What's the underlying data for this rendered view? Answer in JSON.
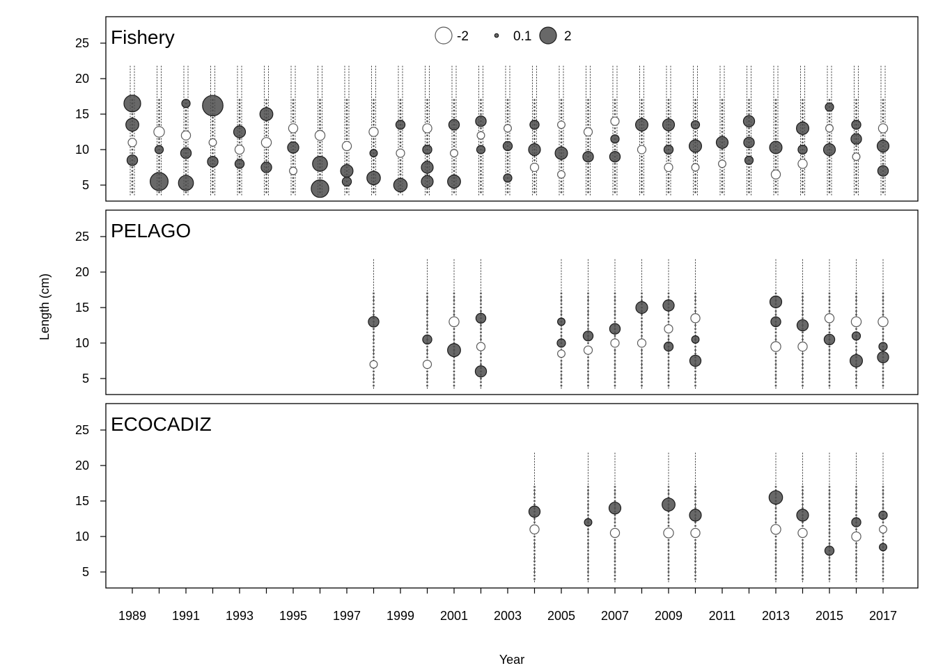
{
  "chart_data": {
    "type": "scatter",
    "subtype": "bubble-residuals",
    "xlabel": "Year",
    "ylabel": "Length (cm)",
    "xlim": [
      1988,
      2018
    ],
    "ylim": [
      3,
      28
    ],
    "x_ticks": [
      1989,
      1991,
      1993,
      1995,
      1997,
      1999,
      2001,
      2003,
      2005,
      2007,
      2009,
      2011,
      2013,
      2015,
      2017
    ],
    "y_ticks": [
      5,
      10,
      15,
      20,
      25
    ],
    "legend": {
      "placement": "top-center",
      "entries": [
        {
          "label": "-2",
          "value": -2
        },
        {
          "label": "0.1",
          "value": 0.1
        },
        {
          "label": "2",
          "value": 2
        }
      ]
    },
    "colors": {
      "positive_fill": "#4d4d4d",
      "negative_fill": "#ffffff",
      "stroke": "#333333"
    },
    "panels": [
      {
        "name": "Fishery",
        "years": [
          1989,
          1990,
          1991,
          1992,
          1993,
          1994,
          1995,
          1996,
          1997,
          1998,
          1999,
          2000,
          2001,
          2002,
          2003,
          2004,
          2005,
          2006,
          2007,
          2008,
          2009,
          2010,
          2011,
          2012,
          2013,
          2014,
          2015,
          2016,
          2017
        ],
        "residuals": [
          [
            1989,
            16.5,
            2.0
          ],
          [
            1989,
            13.5,
            1.2
          ],
          [
            1989,
            8.5,
            0.8
          ],
          [
            1989,
            11,
            -0.5
          ],
          [
            1990,
            5.5,
            2.3
          ],
          [
            1990,
            12.5,
            -0.8
          ],
          [
            1990,
            10,
            0.5
          ],
          [
            1991,
            5.3,
            1.6
          ],
          [
            1991,
            9.5,
            0.8
          ],
          [
            1991,
            12,
            -0.6
          ],
          [
            1991,
            16.5,
            0.5
          ],
          [
            1992,
            16.2,
            3.0
          ],
          [
            1992,
            8.3,
            0.8
          ],
          [
            1992,
            11,
            -0.4
          ],
          [
            1993,
            12.5,
            1.0
          ],
          [
            1993,
            8,
            0.6
          ],
          [
            1993,
            10,
            -0.6
          ],
          [
            1994,
            15,
            1.2
          ],
          [
            1994,
            7.5,
            0.8
          ],
          [
            1994,
            11,
            -0.7
          ],
          [
            1995,
            10.3,
            0.9
          ],
          [
            1995,
            13,
            -0.6
          ],
          [
            1995,
            7,
            -0.4
          ],
          [
            1996,
            4.5,
            2.2
          ],
          [
            1996,
            8,
            1.6
          ],
          [
            1996,
            12,
            -0.7
          ],
          [
            1997,
            7,
            1.1
          ],
          [
            1997,
            5.5,
            0.6
          ],
          [
            1997,
            10.5,
            -0.6
          ],
          [
            1998,
            6,
            1.3
          ],
          [
            1998,
            12.5,
            -0.6
          ],
          [
            1998,
            9.5,
            0.4
          ],
          [
            1999,
            5,
            1.3
          ],
          [
            1999,
            13.5,
            0.6
          ],
          [
            1999,
            9.5,
            -0.5
          ],
          [
            2000,
            5.5,
            1.0
          ],
          [
            2000,
            7.5,
            1.0
          ],
          [
            2000,
            10,
            0.6
          ],
          [
            2000,
            13,
            -0.6
          ],
          [
            2001,
            5.5,
            1.2
          ],
          [
            2001,
            13.5,
            0.8
          ],
          [
            2001,
            9.5,
            -0.4
          ],
          [
            2002,
            14,
            0.8
          ],
          [
            2002,
            10,
            0.5
          ],
          [
            2002,
            12,
            -0.4
          ],
          [
            2003,
            10.5,
            0.6
          ],
          [
            2003,
            6,
            0.5
          ],
          [
            2003,
            13,
            -0.4
          ],
          [
            2004,
            10,
            1.0
          ],
          [
            2004,
            13.5,
            0.6
          ],
          [
            2004,
            7.5,
            -0.5
          ],
          [
            2005,
            9.5,
            1.1
          ],
          [
            2005,
            13.5,
            -0.4
          ],
          [
            2005,
            6.5,
            -0.4
          ],
          [
            2006,
            9,
            0.8
          ],
          [
            2006,
            12.5,
            -0.5
          ],
          [
            2007,
            9,
            0.8
          ],
          [
            2007,
            11.5,
            0.5
          ],
          [
            2007,
            14,
            -0.5
          ],
          [
            2008,
            13.5,
            1.1
          ],
          [
            2008,
            10,
            -0.5
          ],
          [
            2009,
            13.5,
            1.0
          ],
          [
            2009,
            10,
            0.6
          ],
          [
            2009,
            7.5,
            -0.5
          ],
          [
            2010,
            10.5,
            1.1
          ],
          [
            2010,
            13.5,
            0.5
          ],
          [
            2010,
            7.5,
            -0.4
          ],
          [
            2011,
            11,
            1.0
          ],
          [
            2011,
            8,
            -0.4
          ],
          [
            2012,
            14,
            0.9
          ],
          [
            2012,
            11,
            0.8
          ],
          [
            2012,
            8.5,
            0.5
          ],
          [
            2013,
            10.3,
            1.1
          ],
          [
            2013,
            6.5,
            -0.6
          ],
          [
            2014,
            13,
            1.1
          ],
          [
            2014,
            10,
            0.6
          ],
          [
            2014,
            8,
            -0.6
          ],
          [
            2015,
            10,
            1.0
          ],
          [
            2015,
            16,
            0.5
          ],
          [
            2015,
            13,
            -0.4
          ],
          [
            2016,
            11.5,
            0.8
          ],
          [
            2016,
            13.5,
            0.6
          ],
          [
            2016,
            9,
            -0.4
          ],
          [
            2017,
            10.5,
            1.0
          ],
          [
            2017,
            7,
            0.8
          ],
          [
            2017,
            13,
            -0.6
          ]
        ]
      },
      {
        "name": "PELAGO",
        "years": [
          1998,
          2000,
          2001,
          2002,
          2005,
          2006,
          2007,
          2008,
          2009,
          2010,
          2013,
          2014,
          2015,
          2016,
          2017
        ],
        "residuals": [
          [
            1998,
            13,
            0.8
          ],
          [
            1998,
            7,
            -0.4
          ],
          [
            2000,
            10.5,
            0.6
          ],
          [
            2000,
            7,
            -0.5
          ],
          [
            2001,
            9,
            1.2
          ],
          [
            2001,
            13,
            -0.7
          ],
          [
            2002,
            6,
            0.9
          ],
          [
            2002,
            13.5,
            0.7
          ],
          [
            2002,
            9.5,
            -0.5
          ],
          [
            2005,
            10,
            0.5
          ],
          [
            2005,
            13,
            0.4
          ],
          [
            2005,
            8.5,
            -0.4
          ],
          [
            2006,
            11,
            0.7
          ],
          [
            2006,
            9,
            -0.5
          ],
          [
            2007,
            12,
            0.8
          ],
          [
            2007,
            10,
            -0.5
          ],
          [
            2008,
            15,
            1.0
          ],
          [
            2008,
            10,
            -0.5
          ],
          [
            2009,
            15.3,
            0.9
          ],
          [
            2009,
            9.5,
            0.6
          ],
          [
            2009,
            12,
            -0.5
          ],
          [
            2010,
            7.5,
            0.9
          ],
          [
            2010,
            13.5,
            -0.6
          ],
          [
            2010,
            10.5,
            0.4
          ],
          [
            2013,
            15.8,
            1.0
          ],
          [
            2013,
            13,
            0.7
          ],
          [
            2013,
            9.5,
            -0.7
          ],
          [
            2014,
            12.5,
            0.9
          ],
          [
            2014,
            9.5,
            -0.6
          ],
          [
            2015,
            10.5,
            0.8
          ],
          [
            2015,
            13.5,
            -0.6
          ],
          [
            2016,
            7.5,
            1.1
          ],
          [
            2016,
            11,
            0.5
          ],
          [
            2016,
            13,
            -0.7
          ],
          [
            2017,
            8,
            0.9
          ],
          [
            2017,
            9.5,
            0.5
          ],
          [
            2017,
            13,
            -0.7
          ]
        ]
      },
      {
        "name": "ECOCADIZ",
        "years": [
          2004,
          2006,
          2007,
          2009,
          2010,
          2013,
          2014,
          2015,
          2016,
          2017
        ],
        "residuals": [
          [
            2004,
            13.5,
            0.9
          ],
          [
            2004,
            11,
            -0.6
          ],
          [
            2006,
            12,
            0.4
          ],
          [
            2007,
            14,
            1.0
          ],
          [
            2007,
            10.5,
            -0.6
          ],
          [
            2009,
            14.5,
            1.2
          ],
          [
            2009,
            10.5,
            -0.7
          ],
          [
            2010,
            13,
            1.0
          ],
          [
            2010,
            10.5,
            -0.6
          ],
          [
            2013,
            15.5,
            1.3
          ],
          [
            2013,
            11,
            -0.7
          ],
          [
            2014,
            13,
            1.0
          ],
          [
            2014,
            10.5,
            -0.6
          ],
          [
            2015,
            8,
            0.6
          ],
          [
            2016,
            12,
            0.6
          ],
          [
            2016,
            10,
            -0.6
          ],
          [
            2017,
            13,
            0.5
          ],
          [
            2017,
            8.5,
            0.4
          ],
          [
            2017,
            11,
            -0.4
          ]
        ]
      }
    ]
  }
}
